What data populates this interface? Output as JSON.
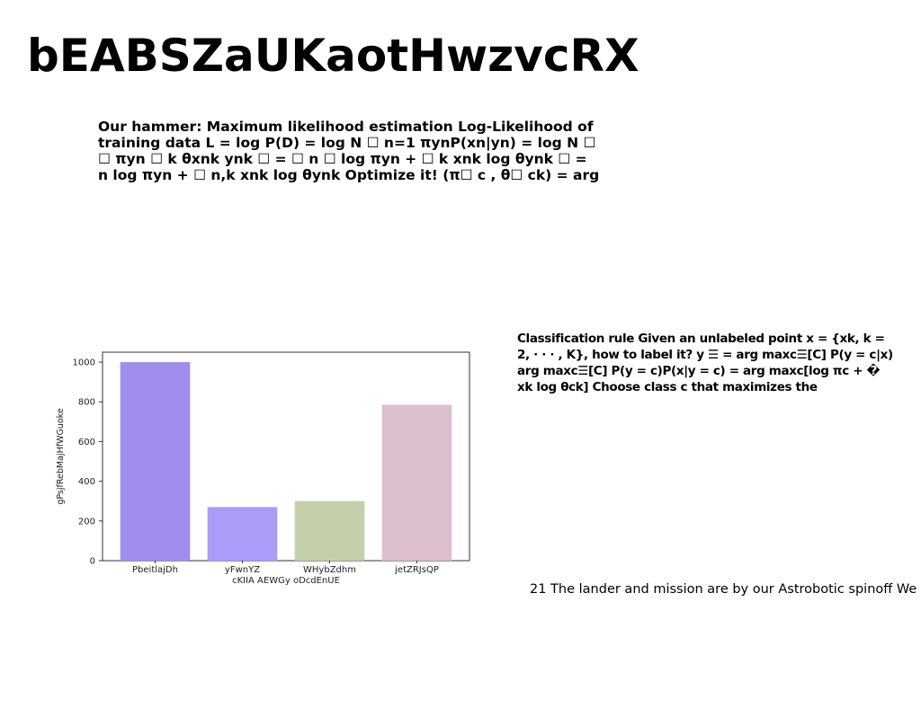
{
  "page": {
    "title": "bEABSZaUKaotHwzvcRX"
  },
  "text_block_1": {
    "text": "Our hammer: Maximum likelihood estimation Log-Likelihood of\ntraining data L = log P(D) = log N ☐ n=1 πynP(xn|yn) = log N ☐\n☐ πyn ☐ k θxnk ynk ☐ = ☐ n ☐ log πyn + ☐ k xnk log θynk ☐ =\nn log πyn + ☐ n,k xnk log θynk Optimize it! (π☐ c , θ☐ ck) = arg"
  },
  "text_block_2": {
    "text": "Classification rule Given an unlabeled point x = {xk, k =\n2, · · · , K}, how to label it? y ☰ = arg maxc☰[C] P(y = c|x)\narg maxc☰[C] P(y = c)P(x|y = c) = arg maxc[log πc + �\nxk log θck] Choose class c that maximizes the"
  },
  "footnote": {
    "text": "21 The lander and mission are by our Astrobotic spinoff We"
  },
  "chart_data": {
    "type": "bar",
    "categories": [
      "PbeitlajDh",
      "yFwnYZ",
      "WHybZdhm",
      "jetZRJsQP"
    ],
    "values": [
      1000,
      270,
      300,
      785
    ],
    "colors": [
      "#a08ded",
      "#ab9cf8",
      "#c4d0aa",
      "#dcbfce"
    ],
    "xlabel": "cKIIA AEWGy oDcdEnUE",
    "ylabel": "gPsjfRebMajHfWGuoke",
    "ylim": [
      0,
      1050
    ],
    "yticks": [
      0,
      200,
      400,
      600,
      800,
      1000
    ],
    "grid": false,
    "legend": "none"
  }
}
